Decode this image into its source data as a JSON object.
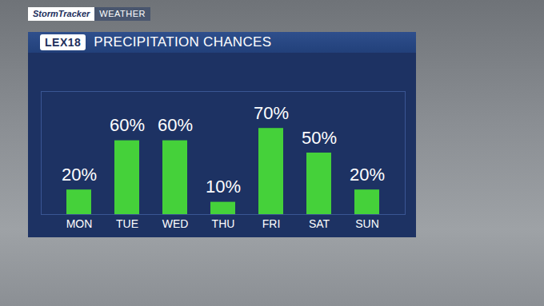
{
  "chart_data": {
    "type": "bar",
    "title": "PRECIPITATION CHANCES",
    "annotations": [
      "StormTracker",
      "WEATHER",
      "LEX18"
    ],
    "categories": [
      "MON",
      "TUE",
      "WED",
      "THU",
      "FRI",
      "SAT",
      "SUN"
    ],
    "values": [
      20,
      60,
      60,
      10,
      70,
      50,
      20
    ],
    "value_labels": [
      "20%",
      "60%",
      "60%",
      "10%",
      "70%",
      "50%",
      "20%"
    ],
    "color": "#45d13a",
    "ylim": [
      0,
      100
    ],
    "yticks": [],
    "data_labels": true,
    "tick_labels": "x"
  }
}
